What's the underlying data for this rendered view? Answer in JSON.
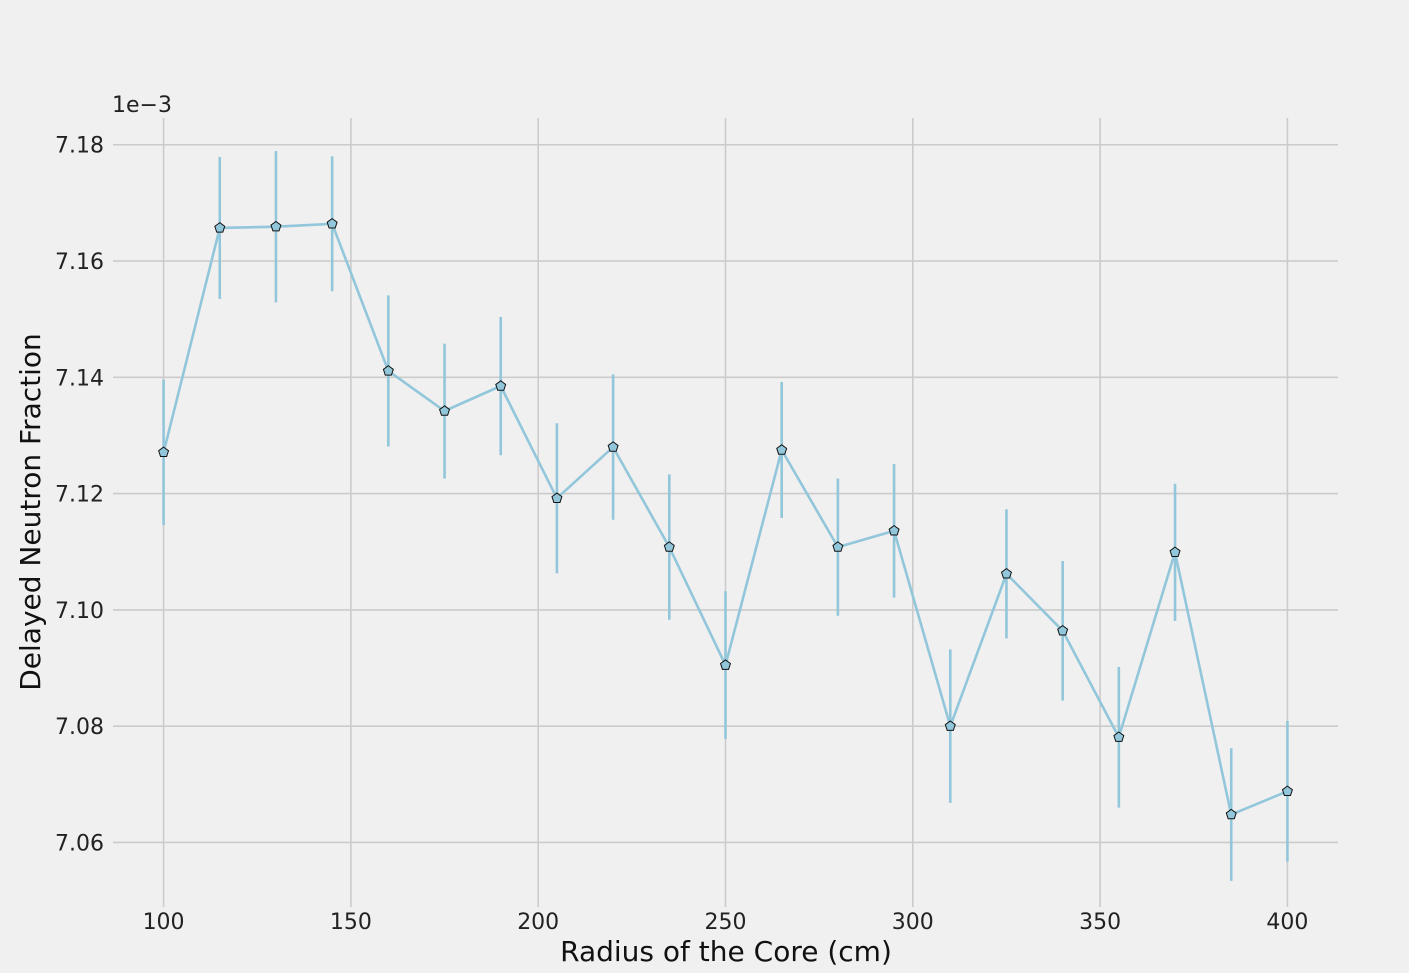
{
  "chart_data": {
    "type": "line",
    "title": "",
    "xlabel": "Radius of the Core (cm)",
    "ylabel": "Delayed Neutron Fraction",
    "y_offset_label": "1e−3",
    "xlim": [
      86.5,
      413.5
    ],
    "ylim": [
      7.0489,
      7.1846
    ],
    "x_ticks": [
      100,
      150,
      200,
      250,
      300,
      350,
      400
    ],
    "y_ticks": [
      7.06,
      7.08,
      7.1,
      7.12,
      7.14,
      7.16,
      7.18
    ],
    "grid": true,
    "series_color": "#92c6da",
    "marker": "pentagon",
    "series": [
      {
        "x": [
          100,
          115,
          130,
          145,
          160,
          175,
          190,
          205,
          220,
          235,
          250,
          265,
          280,
          295,
          310,
          325,
          340,
          355,
          370,
          385,
          400
        ],
        "y": [
          7.1271,
          7.1657,
          7.1659,
          7.1664,
          7.1411,
          7.1342,
          7.1385,
          7.1192,
          7.128,
          7.1108,
          7.0905,
          7.1275,
          7.1108,
          7.1136,
          7.08,
          7.1062,
          7.0964,
          7.0781,
          7.1099,
          7.0648,
          7.0688
        ],
        "err": [
          0.0125,
          0.0122,
          0.013,
          0.0116,
          0.013,
          0.0116,
          0.0119,
          0.0129,
          0.0125,
          0.0125,
          0.0127,
          0.0117,
          0.0118,
          0.0115,
          0.0132,
          0.0111,
          0.012,
          0.0121,
          0.0118,
          0.0114,
          0.0121
        ]
      }
    ]
  }
}
